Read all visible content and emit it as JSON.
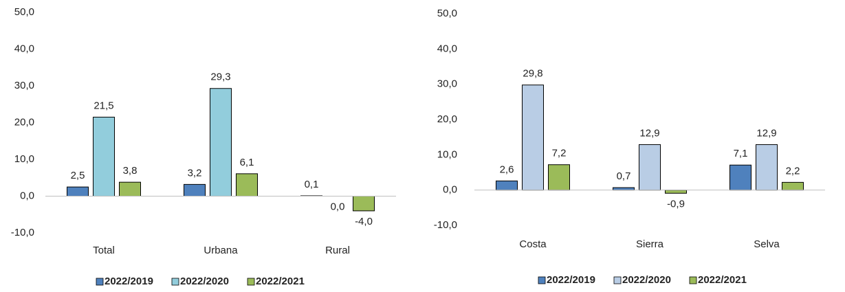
{
  "chart_data": [
    {
      "type": "bar",
      "categories": [
        "Total",
        "Urbana",
        "Rural"
      ],
      "series": [
        {
          "name": "2022/2019",
          "color": "#4f81bd",
          "values": [
            2.5,
            3.2,
            0.1
          ],
          "value_labels": [
            "2,5",
            "3,2",
            "0,1"
          ]
        },
        {
          "name": "2022/2020",
          "color": "#92cddc",
          "values": [
            21.5,
            29.3,
            0.0
          ],
          "value_labels": [
            "21,5",
            "29,3",
            "0,0"
          ]
        },
        {
          "name": "2022/2021",
          "color": "#9bbb59",
          "values": [
            3.8,
            6.1,
            -4.0
          ],
          "value_labels": [
            "3,8",
            "6,1",
            "-4,0"
          ]
        }
      ],
      "ylim": [
        -10,
        50
      ],
      "yticks": [
        {
          "value": -10,
          "label": "-10,0"
        },
        {
          "value": 0,
          "label": "0,0"
        },
        {
          "value": 10,
          "label": "10,0"
        },
        {
          "value": 20,
          "label": "20,0"
        },
        {
          "value": 30,
          "label": "30,0"
        },
        {
          "value": 40,
          "label": "40,0"
        },
        {
          "value": 50,
          "label": "50,0"
        }
      ],
      "legend": "bottom"
    },
    {
      "type": "bar",
      "categories": [
        "Costa",
        "Sierra",
        "Selva"
      ],
      "series": [
        {
          "name": "2022/2019",
          "color": "#4f81bd",
          "values": [
            2.6,
            0.7,
            7.1
          ],
          "value_labels": [
            "2,6",
            "0,7",
            "7,1"
          ]
        },
        {
          "name": "2022/2020",
          "color": "#b9cde5",
          "values": [
            29.8,
            12.9,
            12.9
          ],
          "value_labels": [
            "29,8",
            "12,9",
            "12,9"
          ]
        },
        {
          "name": "2022/2021",
          "color": "#9bbb59",
          "values": [
            7.2,
            -0.9,
            2.2
          ],
          "value_labels": [
            "7,2",
            "-0,9",
            "2,2"
          ]
        }
      ],
      "ylim": [
        -10,
        50
      ],
      "yticks": [
        {
          "value": -10,
          "label": "-10,0"
        },
        {
          "value": 0,
          "label": "0,0"
        },
        {
          "value": 10,
          "label": "10,0"
        },
        {
          "value": 20,
          "label": "20,0"
        },
        {
          "value": 30,
          "label": "30,0"
        },
        {
          "value": 40,
          "label": "40,0"
        },
        {
          "value": 50,
          "label": "50,0"
        }
      ],
      "legend": "bottom"
    }
  ]
}
